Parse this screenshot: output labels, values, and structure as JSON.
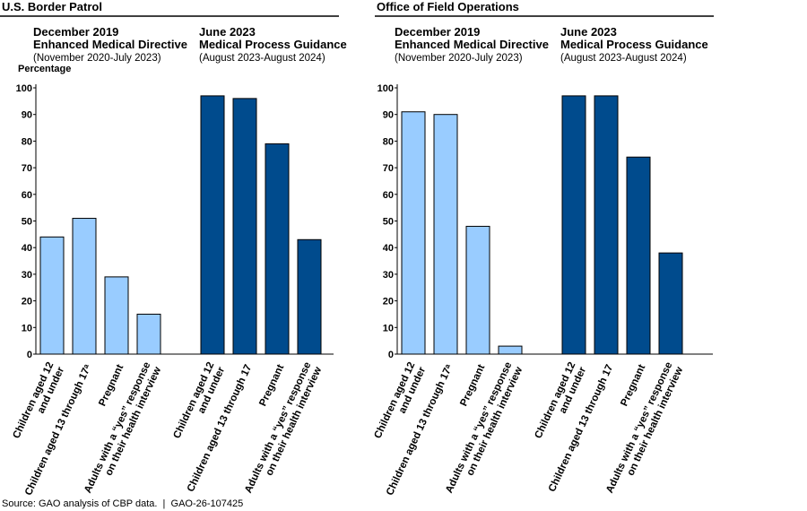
{
  "chart_data": [
    {
      "type": "bar",
      "title": "U.S. Border Patrol",
      "y_label": "Percentage",
      "ylim": [
        0,
        100
      ],
      "yticks": [
        0,
        10,
        20,
        30,
        40,
        50,
        60,
        70,
        80,
        90,
        100
      ],
      "series": [
        {
          "heading": [
            "December 2019",
            "Enhanced Medical Directive"
          ],
          "period": "(November 2020-July 2023)",
          "color": "#99ccff",
          "categories": [
            [
              "Children aged 12",
              "and under"
            ],
            [
              "Children aged 13 through 17ᵃ"
            ],
            [
              "Pregnant"
            ],
            [
              "Adults with a “yes” response",
              "on their health interview"
            ]
          ],
          "values": [
            44,
            51,
            29,
            15
          ]
        },
        {
          "heading": [
            "June 2023",
            "Medical Process Guidance"
          ],
          "period": "(August 2023-August 2024)",
          "color": "#004b8d",
          "categories": [
            [
              "Children aged 12",
              "and under"
            ],
            [
              "Children aged 13 through 17"
            ],
            [
              "Pregnant"
            ],
            [
              "Adults with a “yes” response",
              "on their health interview"
            ]
          ],
          "values": [
            97,
            96,
            79,
            43
          ]
        }
      ]
    },
    {
      "type": "bar",
      "title": "Office of Field Operations",
      "ylim": [
        0,
        100
      ],
      "yticks": [
        0,
        10,
        20,
        30,
        40,
        50,
        60,
        70,
        80,
        90,
        100
      ],
      "series": [
        {
          "heading": [
            "December 2019",
            "Enhanced Medical Directive"
          ],
          "period": "(November 2020-July 2023)",
          "color": "#99ccff",
          "categories": [
            [
              "Children aged 12",
              "and under"
            ],
            [
              "Children aged 13 through 17ᵃ"
            ],
            [
              "Pregnant"
            ],
            [
              "Adults with a “yes” response",
              "on their health interview"
            ]
          ],
          "values": [
            91,
            90,
            48,
            3
          ]
        },
        {
          "heading": [
            "June 2023",
            "Medical Process Guidance"
          ],
          "period": "(August 2023-August 2024)",
          "color": "#004b8d",
          "categories": [
            [
              "Children aged 12",
              "and under"
            ],
            [
              "Children aged 13 through 17"
            ],
            [
              "Pregnant"
            ],
            [
              "Adults with a “yes” response",
              "on their health interview"
            ]
          ],
          "values": [
            97,
            97,
            74,
            38
          ]
        }
      ]
    }
  ],
  "source": "Source: GAO analysis of CBP data.  |  GAO-26-107425"
}
